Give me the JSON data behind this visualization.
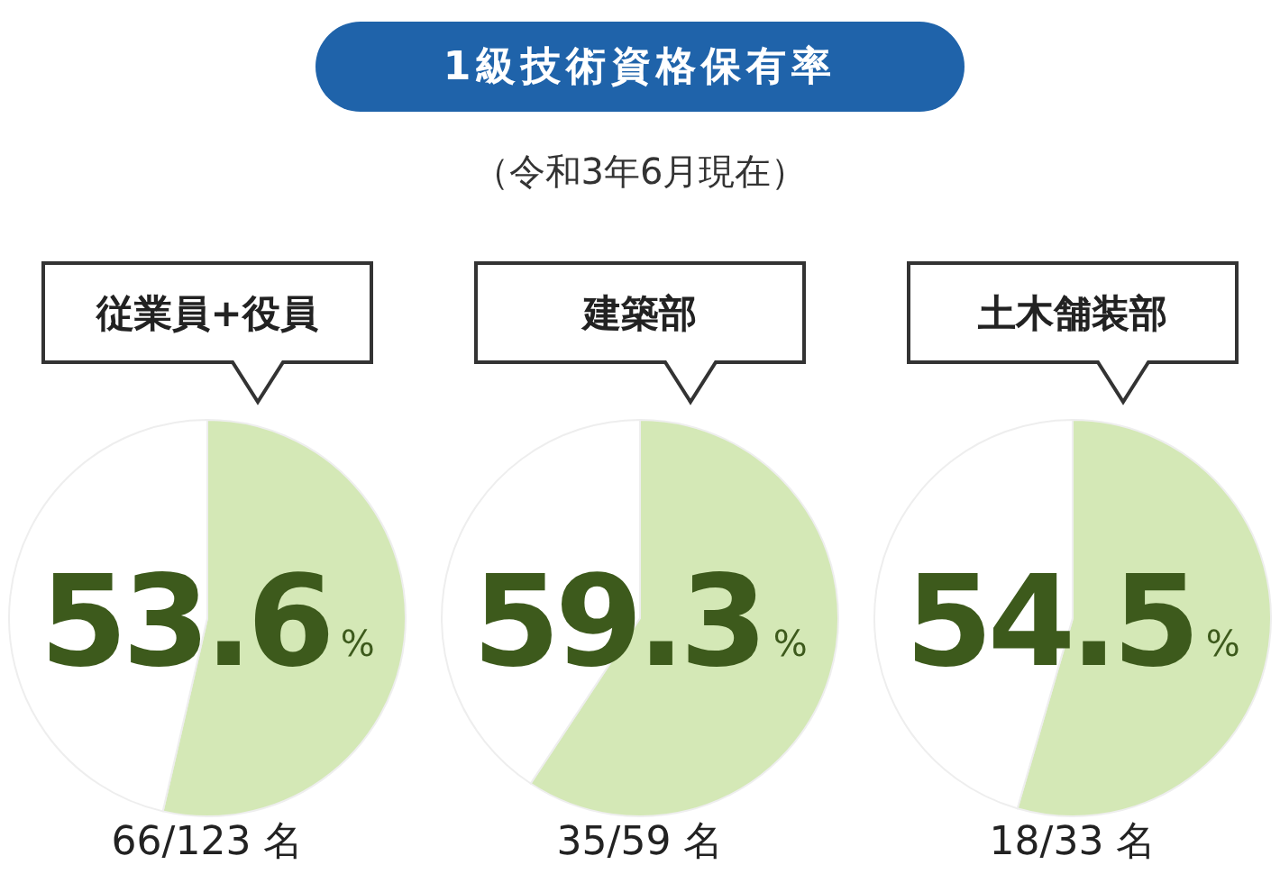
{
  "chart_data": [
    {
      "type": "other",
      "title": "1級技術資格保有率",
      "subtitle": "（令和3年6月現在）"
    },
    {
      "type": "pie",
      "title": "従業員+役員",
      "categories": [
        null,
        null
      ],
      "values": [
        53.6,
        46.4
      ],
      "colors": [
        "#d4e8b6",
        "#ffffff"
      ],
      "value_labels": [
        "53.6%",
        null
      ],
      "annotations": [
        "66/123 名"
      ]
    },
    {
      "type": "pie",
      "title": "建築部",
      "categories": [
        null,
        null
      ],
      "values": [
        59.3,
        40.7
      ],
      "colors": [
        "#d4e8b6",
        "#ffffff"
      ],
      "value_labels": [
        "59.3%",
        null
      ],
      "annotations": [
        "35/59 名"
      ]
    },
    {
      "type": "pie",
      "title": "土木舗装部",
      "categories": [
        null,
        null
      ],
      "values": [
        54.5,
        45.5
      ],
      "colors": [
        "#d4e8b6",
        "#ffffff"
      ],
      "value_labels": [
        "54.5%",
        null
      ],
      "annotations": [
        "18/33 名"
      ]
    }
  ]
}
